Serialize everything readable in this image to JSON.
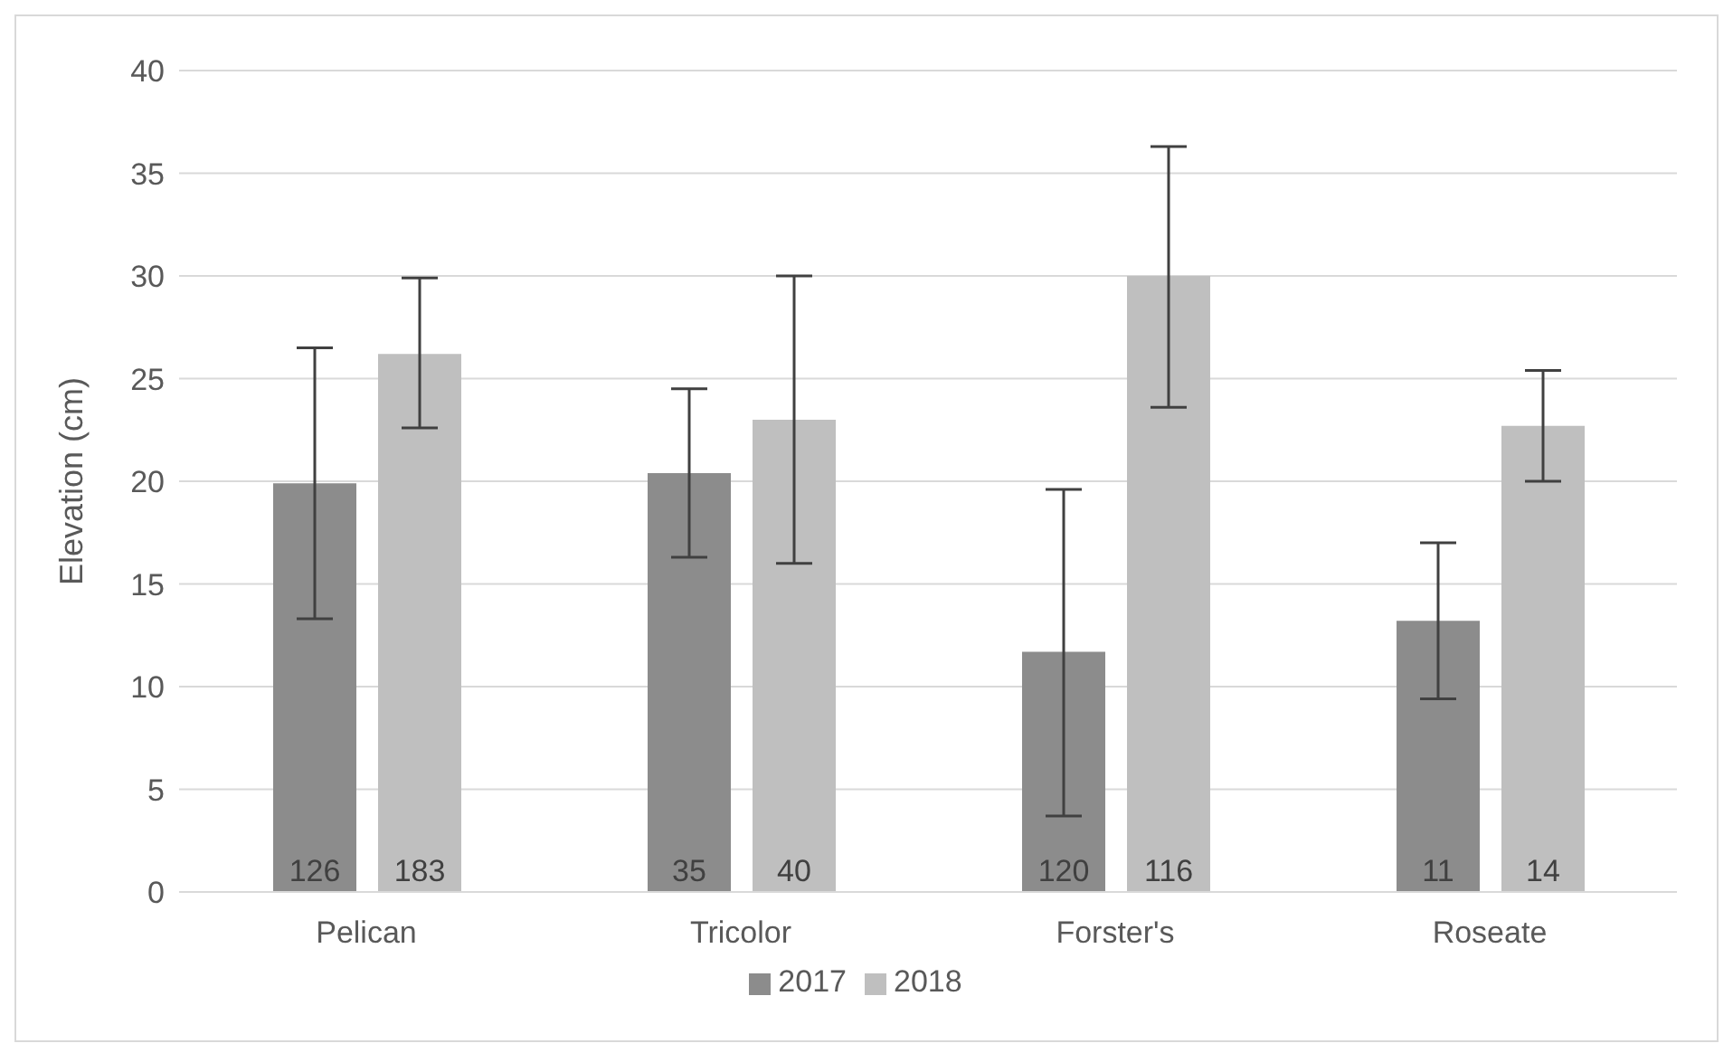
{
  "chart_data": {
    "type": "bar",
    "ylabel": "Elevation (cm)",
    "categories": [
      "Pelican",
      "Tricolor",
      "Forster's",
      "Roseate"
    ],
    "series": [
      {
        "name": "2017",
        "color": "#8c8c8c",
        "values": [
          19.9,
          20.4,
          11.7,
          13.2
        ],
        "errors": [
          [
            13.3,
            26.5
          ],
          [
            16.3,
            24.5
          ],
          [
            3.7,
            19.6
          ],
          [
            9.4,
            17.0
          ]
        ]
      },
      {
        "name": "2018",
        "color": "#bfbfbf",
        "values": [
          26.2,
          23.0,
          30.0,
          22.7
        ],
        "errors": [
          [
            22.6,
            29.9
          ],
          [
            16.0,
            30.0
          ],
          [
            23.6,
            36.3
          ],
          [
            20.0,
            25.4
          ]
        ]
      }
    ],
    "annotations": [
      "126",
      "183",
      "35",
      "40",
      "120",
      "116",
      "11",
      "14"
    ],
    "ylim": [
      0,
      40
    ],
    "yticks": [
      0,
      5,
      10,
      15,
      20,
      25,
      30,
      35,
      40
    ],
    "grid": "y",
    "legend": "bottom"
  }
}
